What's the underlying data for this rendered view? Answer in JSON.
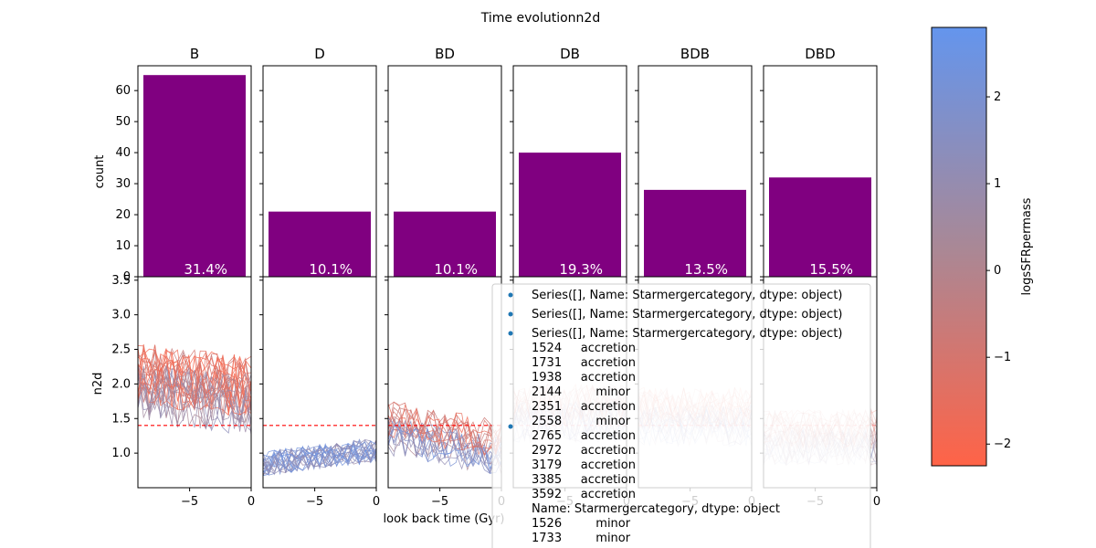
{
  "figure": {
    "title": "Time evolutionn2d",
    "xlabel": "look back time (Gyr)",
    "colorbar": {
      "label": "logsSFRpermass",
      "ticks": [
        "−2",
        "−1",
        "0",
        "1",
        "2"
      ],
      "range": [
        -2.25,
        2.8
      ],
      "colors": {
        "low": "#ff6347",
        "mid": "#a98896",
        "high": "#6495ed"
      }
    },
    "legend": {
      "entries": [
        "Series([], Name: Starmergercategory, dtype: object)",
        "Series([], Name: Starmergercategory, dtype: object)",
        "Series([], Name: Starmergercategory, dtype: object)",
        "1524     accretion\n1731     accretion\n1938     accretion\n2144         minor\n2351     accretion\n2558         minor\n2765     accretion\n2972     accretion\n3179     accretion\n3385     accretion\n3592     accretion\nName: Starmergercategory, dtype: object\n1526         minor\n1733         minor"
      ],
      "marker_color": "#1f77b4"
    }
  },
  "chart_data": [
    {
      "type": "bar",
      "ylabel": "count",
      "ylim": [
        0,
        68
      ],
      "yticks": [
        "0",
        "10",
        "20",
        "30",
        "40",
        "50",
        "60"
      ],
      "bar_color": "#800080",
      "categories": [
        "B",
        "D",
        "BD",
        "DB",
        "BDB",
        "DBD"
      ],
      "values": [
        65,
        21,
        21,
        40,
        28,
        32
      ],
      "percent_labels": [
        "31.4%",
        "10.1%",
        "10.1%",
        "19.3%",
        "13.5%",
        "15.5%"
      ]
    },
    {
      "type": "line",
      "ylabel": "n2d",
      "xlim": [
        -9.2,
        0
      ],
      "ylim": [
        0.5,
        3.55
      ],
      "xticks": [
        "−5",
        "0"
      ],
      "yticks": [
        "1.0",
        "1.5",
        "2.0",
        "2.5",
        "3.0",
        "3.5"
      ],
      "reference_line": {
        "y": 1.4,
        "color": "#ff0000"
      },
      "panels": [
        {
          "name": "B",
          "count": 65,
          "base": 2.0,
          "spread": 0.45,
          "late_trend": -0.2
        },
        {
          "name": "D",
          "count": 21,
          "base": 0.95,
          "spread": 0.18,
          "late_trend": 0.2
        },
        {
          "name": "BD",
          "count": 21,
          "base": 1.35,
          "spread": 0.28,
          "late_trend": -0.3
        },
        {
          "name": "DB",
          "count": 40,
          "base": 1.55,
          "spread": 0.3,
          "late_trend": 0.0
        },
        {
          "name": "BDB",
          "count": 28,
          "base": 1.5,
          "spread": 0.3,
          "late_trend": 0.0
        },
        {
          "name": "DBD",
          "count": 32,
          "base": 1.2,
          "spread": 0.28,
          "late_trend": 0.0
        }
      ]
    }
  ]
}
